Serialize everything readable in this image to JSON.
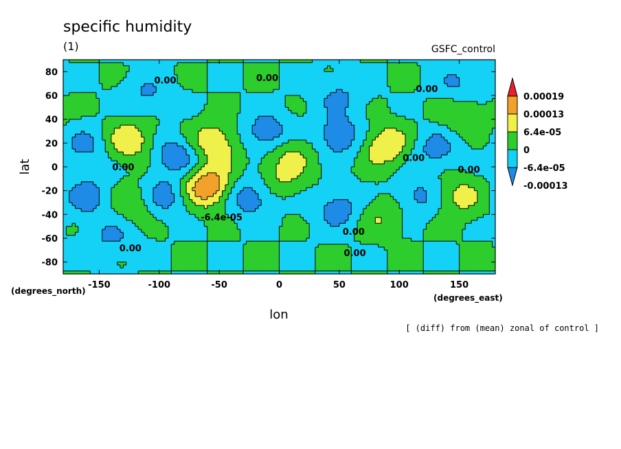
{
  "chart_data": {
    "type": "heatmap",
    "title": "specific humidity",
    "subtitle": "(1)",
    "experiment": "GSFC_control",
    "xlabel": "lon",
    "ylabel": "lat",
    "x_units": "(degrees_east)",
    "y_units": "(degrees_north)",
    "note": "[ (diff) from (mean) zonal of control ]",
    "xlim": [
      -180,
      180
    ],
    "ylim": [
      -90,
      90
    ],
    "x_ticks": [
      -150,
      -100,
      -50,
      0,
      50,
      100,
      150
    ],
    "y_ticks": [
      -80,
      -60,
      -40,
      -20,
      0,
      20,
      40,
      60,
      80
    ],
    "x_tick_labels": [
      "-150",
      "-100",
      "-50",
      "0",
      "50",
      "100",
      "150"
    ],
    "y_tick_labels": [
      "-80",
      "-60",
      "-40",
      "-20",
      "0",
      "20",
      "40",
      "60",
      "80"
    ],
    "colorbar": {
      "labels": [
        "0.00019",
        "0.00013",
        "6.4e-05",
        "0",
        "-6.4e-05",
        "-0.00013"
      ],
      "levels": [
        0.00019,
        0.00013,
        6.4e-05,
        0,
        -6.4e-05,
        -0.00013
      ],
      "colors": [
        "#e8202a",
        "#f2a22a",
        "#f0f04a",
        "#2ccd2c",
        "#14d2f5",
        "#1e8ce6"
      ]
    },
    "contour_labels": [
      {
        "text": "0.00",
        "lon": -95,
        "lat": 70
      },
      {
        "text": "0.00",
        "lon": -10,
        "lat": 72
      },
      {
        "text": "0.00",
        "lon": 123,
        "lat": 63
      },
      {
        "text": "0.00",
        "lon": -130,
        "lat": -3
      },
      {
        "text": "0.00",
        "lon": 112,
        "lat": 5
      },
      {
        "text": "0.00",
        "lon": 158,
        "lat": -5
      },
      {
        "text": "0.00",
        "lon": -124,
        "lat": -71
      },
      {
        "text": "0.00",
        "lon": 62,
        "lat": -57
      },
      {
        "text": "0.00",
        "lon": 63,
        "lat": -75
      },
      {
        "text": "-6.4e-05",
        "lon": -48,
        "lat": -45
      }
    ],
    "anomaly_centers": [
      {
        "lon": -125,
        "lat": 22,
        "value": 0.00012
      },
      {
        "lon": -55,
        "lat": 20,
        "value": 0.00013
      },
      {
        "lon": 88,
        "lat": 18,
        "value": 0.00013
      },
      {
        "lon": -60,
        "lat": -17,
        "value": 0.0002
      },
      {
        "lon": 10,
        "lat": 13,
        "value": 8e-05
      },
      {
        "lon": 150,
        "lat": -25,
        "value": 9e-05
      },
      {
        "lon": -120,
        "lat": -30,
        "value": 7e-05
      },
      {
        "lon": 85,
        "lat": -40,
        "value": 7e-05
      },
      {
        "lon": 155,
        "lat": 42,
        "value": 7e-05
      },
      {
        "lon": 0,
        "lat": -10,
        "value": 7e-05
      },
      {
        "lon": -160,
        "lat": 18,
        "value": -8e-05
      },
      {
        "lon": -85,
        "lat": 10,
        "value": -0.00012
      },
      {
        "lon": -10,
        "lat": 28,
        "value": -0.00012
      },
      {
        "lon": 50,
        "lat": 25,
        "value": -0.00012
      },
      {
        "lon": 130,
        "lat": 15,
        "value": -9e-05
      },
      {
        "lon": -160,
        "lat": -25,
        "value": -0.0001
      },
      {
        "lon": -95,
        "lat": -25,
        "value": -0.00011
      },
      {
        "lon": -25,
        "lat": -25,
        "value": -0.00012
      },
      {
        "lon": 50,
        "lat": -35,
        "value": -0.0001
      },
      {
        "lon": 115,
        "lat": -25,
        "value": -9e-05
      },
      {
        "lon": -110,
        "lat": 60,
        "value": -7e-05
      },
      {
        "lon": 50,
        "lat": 60,
        "value": -7e-05
      },
      {
        "lon": -140,
        "lat": -60,
        "value": -7e-05
      },
      {
        "lon": 150,
        "lat": 70,
        "value": -7e-05
      }
    ]
  }
}
